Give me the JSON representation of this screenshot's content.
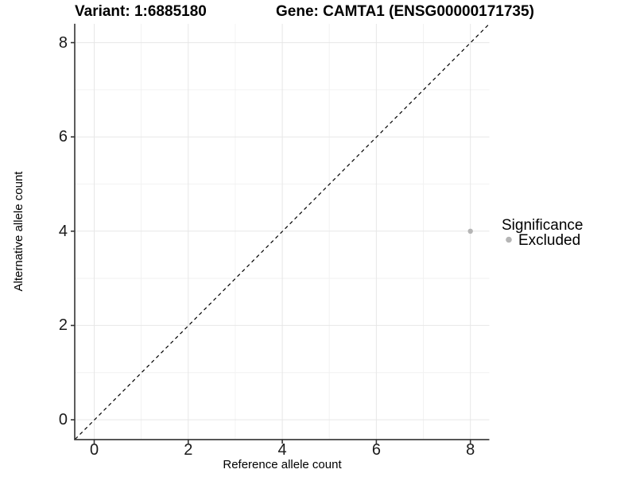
{
  "titles": {
    "variant": "Variant: 1:6885180",
    "gene": "Gene: CAMTA1 (ENSG00000171735)"
  },
  "axes": {
    "x": {
      "label": "Reference allele count",
      "ticks": [
        "0",
        "2",
        "4",
        "6",
        "8"
      ],
      "range": [
        -0.4,
        8.4
      ]
    },
    "y": {
      "label": "Alternative allele count",
      "ticks": [
        "0",
        "2",
        "4",
        "6",
        "8"
      ],
      "range": [
        -0.4,
        8.4
      ]
    }
  },
  "legend": {
    "title": "Significance",
    "items": [
      {
        "label": "Excluded",
        "color": "#b5b5b5"
      }
    ]
  },
  "colors": {
    "background": "#ffffff",
    "major_grid": "#e7e7e7",
    "minor_grid": "#f2f2f2",
    "axis_line": "#333333",
    "identity_line": "#000000",
    "point": "#b5b5b5"
  },
  "chart_data": {
    "type": "scatter",
    "title": "Variant: 1:6885180  |  Gene: CAMTA1 (ENSG00000171735)",
    "xlabel": "Reference allele count",
    "ylabel": "Alternative allele count",
    "xlim": [
      -0.4,
      8.4
    ],
    "ylim": [
      -0.4,
      8.4
    ],
    "x_ticks": [
      0,
      2,
      4,
      6,
      8
    ],
    "y_ticks": [
      0,
      2,
      4,
      6,
      8
    ],
    "grid": "major and minor gridlines, white background",
    "legend_position": "right",
    "reference_line": {
      "type": "identity y=x",
      "style": "dashed",
      "color": "#000000"
    },
    "series": [
      {
        "name": "Excluded",
        "color": "#b5b5b5",
        "points": [
          {
            "x": 8,
            "y": 4
          }
        ]
      }
    ]
  }
}
